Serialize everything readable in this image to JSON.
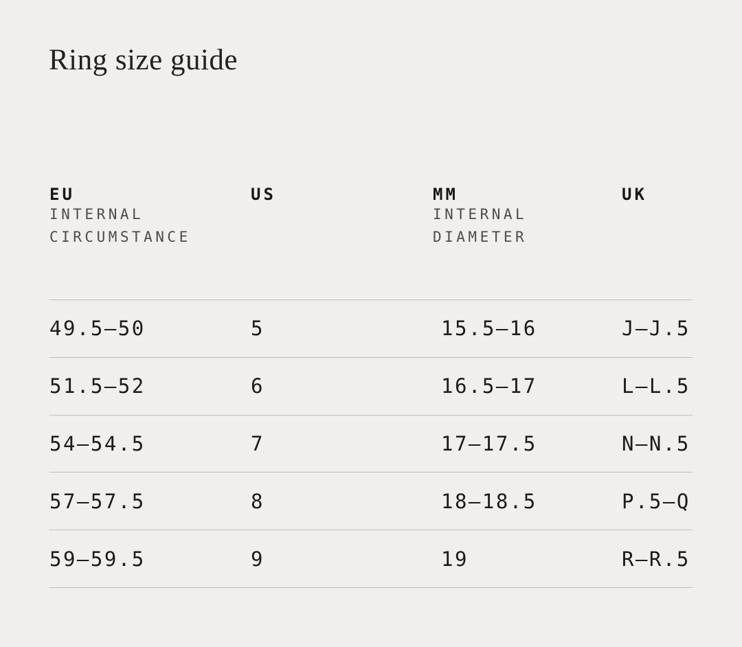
{
  "page": {
    "title": "Ring size guide"
  },
  "table": {
    "columns": [
      {
        "label": "EU",
        "sublabels": [
          "INTERNAL",
          "CIRCUMSTANCE"
        ]
      },
      {
        "label": "US",
        "sublabels": []
      },
      {
        "label": "MM",
        "sublabels": [
          "INTERNAL",
          "DIAMETER"
        ]
      },
      {
        "label": "UK",
        "sublabels": []
      }
    ],
    "rows": [
      [
        "49.5—50",
        "5",
        "15.5—16",
        "J—J.5"
      ],
      [
        "51.5—52",
        "6",
        "16.5—17",
        "L—L.5"
      ],
      [
        "54—54.5",
        "7",
        "17—17.5",
        "N—N.5"
      ],
      [
        "57—57.5",
        "8",
        "18—18.5",
        "P.5—Q"
      ],
      [
        "59—59.5",
        "9",
        "19",
        "R—R.5"
      ]
    ]
  },
  "colors": {
    "background": "#f0efed",
    "text": "#1b1b1b",
    "muted_text": "#4c4c4c",
    "divider": "#bdbdba"
  }
}
